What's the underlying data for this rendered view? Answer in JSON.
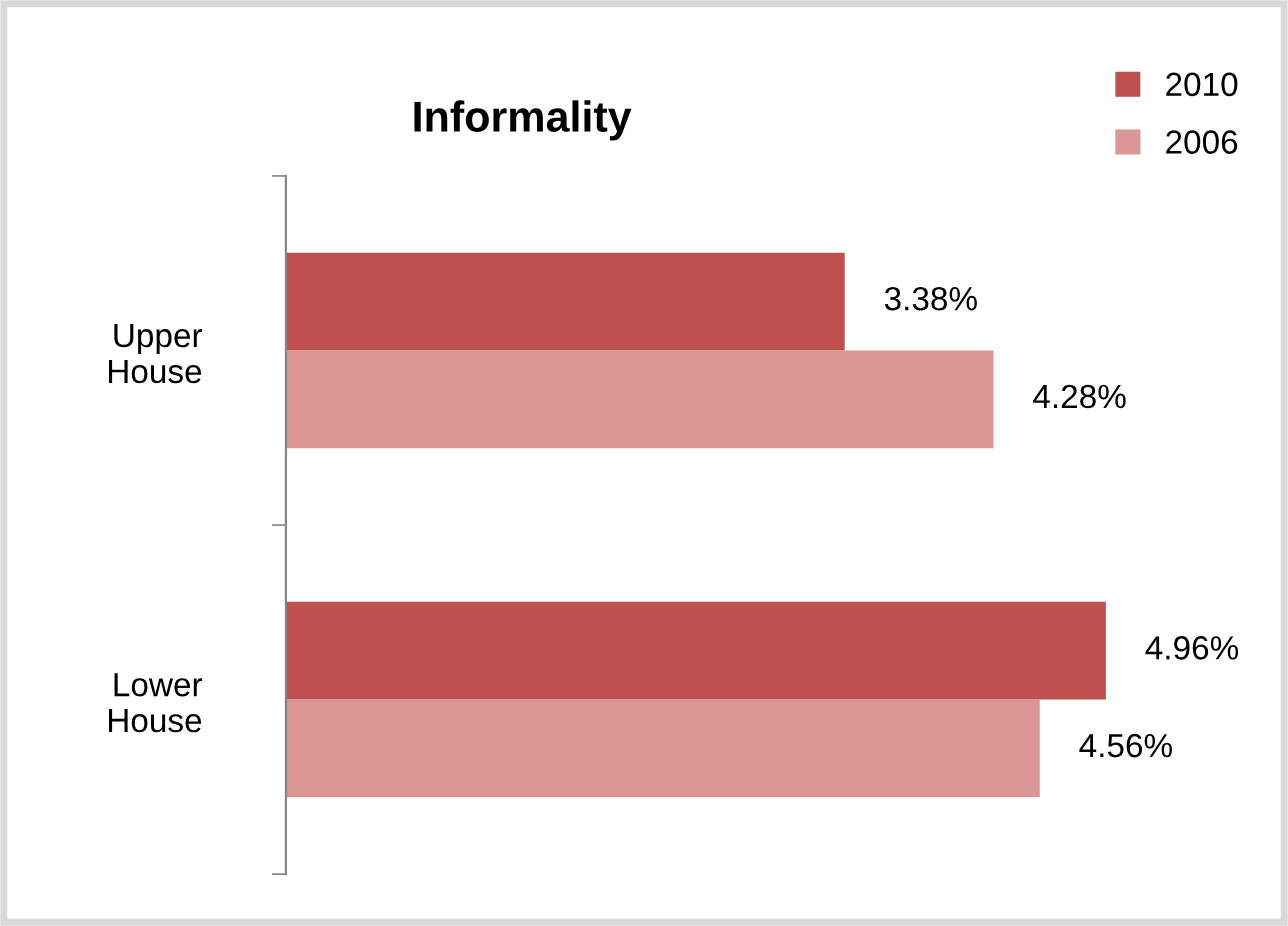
{
  "chart_data": {
    "type": "bar",
    "orientation": "horizontal",
    "title": "Informality",
    "categories": [
      "Upper House",
      "Lower House"
    ],
    "series": [
      {
        "name": "2010",
        "color": "#c0504d",
        "values": [
          3.38,
          4.96
        ],
        "value_labels": [
          "3.38%",
          "4.96%"
        ]
      },
      {
        "name": "2006",
        "color": "#d99694",
        "values": [
          4.28,
          4.56
        ],
        "value_labels": [
          "4.28%",
          "4.56%"
        ]
      }
    ],
    "legend": "top right",
    "grid": false,
    "tick_labels": "y"
  }
}
